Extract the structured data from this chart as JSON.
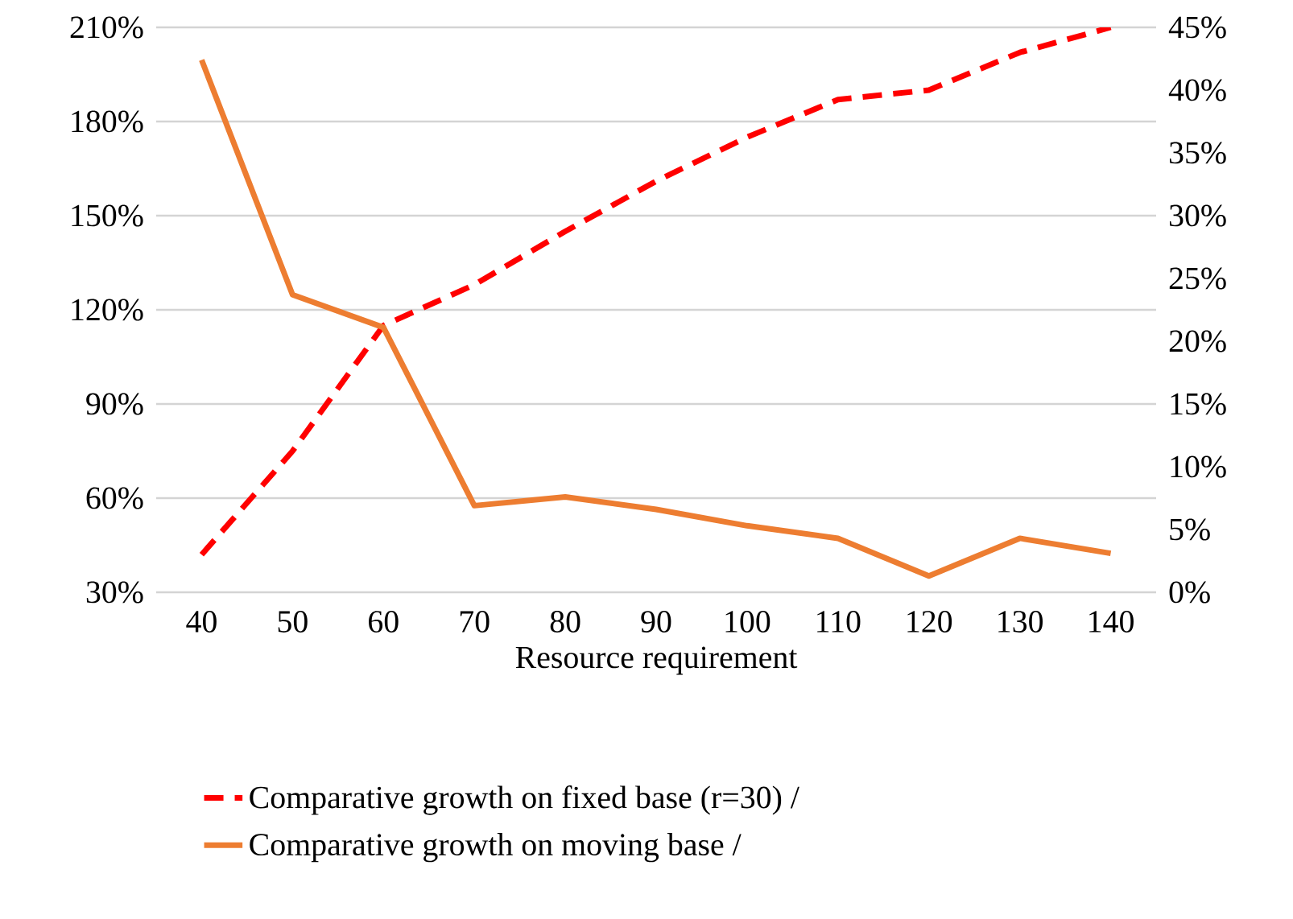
{
  "chart_data": {
    "type": "line",
    "xlabel": "Resource requirement",
    "categories": [
      "40",
      "50",
      "60",
      "70",
      "80",
      "90",
      "100",
      "110",
      "120",
      "130",
      "140"
    ],
    "series": [
      {
        "name": "Comparative growth on fixed base (r=30) /",
        "color": "#ff0000",
        "line_style": "dashed",
        "axis": "y",
        "values": [
          42,
          75,
          115,
          128,
          145,
          161,
          175,
          187,
          190,
          202,
          210
        ]
      },
      {
        "name": "Comparative growth on moving base /",
        "color": "#ed7d31",
        "line_style": "solid",
        "axis": "y2",
        "values": [
          42.4,
          23.7,
          21.1,
          6.9,
          7.6,
          6.6,
          5.3,
          4.3,
          1.3,
          4.3,
          3.1
        ]
      }
    ],
    "ylim": [
      30,
      210
    ],
    "yticks": [
      {
        "value": 30,
        "label": "30%"
      },
      {
        "value": 60,
        "label": "60%"
      },
      {
        "value": 90,
        "label": "90%"
      },
      {
        "value": 120,
        "label": "120%"
      },
      {
        "value": 150,
        "label": "150%"
      },
      {
        "value": 180,
        "label": "180%"
      },
      {
        "value": 210,
        "label": "210%"
      }
    ],
    "y2lim": [
      0,
      45
    ],
    "y2ticks": [
      {
        "value": 0,
        "label": "0%"
      },
      {
        "value": 5,
        "label": "5%"
      },
      {
        "value": 10,
        "label": "10%"
      },
      {
        "value": 15,
        "label": "15%"
      },
      {
        "value": 20,
        "label": "20%"
      },
      {
        "value": 25,
        "label": "25%"
      },
      {
        "value": 30,
        "label": "30%"
      },
      {
        "value": 35,
        "label": "35%"
      },
      {
        "value": 40,
        "label": "40%"
      },
      {
        "value": 45,
        "label": "45%"
      }
    ],
    "grid": "y",
    "legend": "bottom"
  }
}
